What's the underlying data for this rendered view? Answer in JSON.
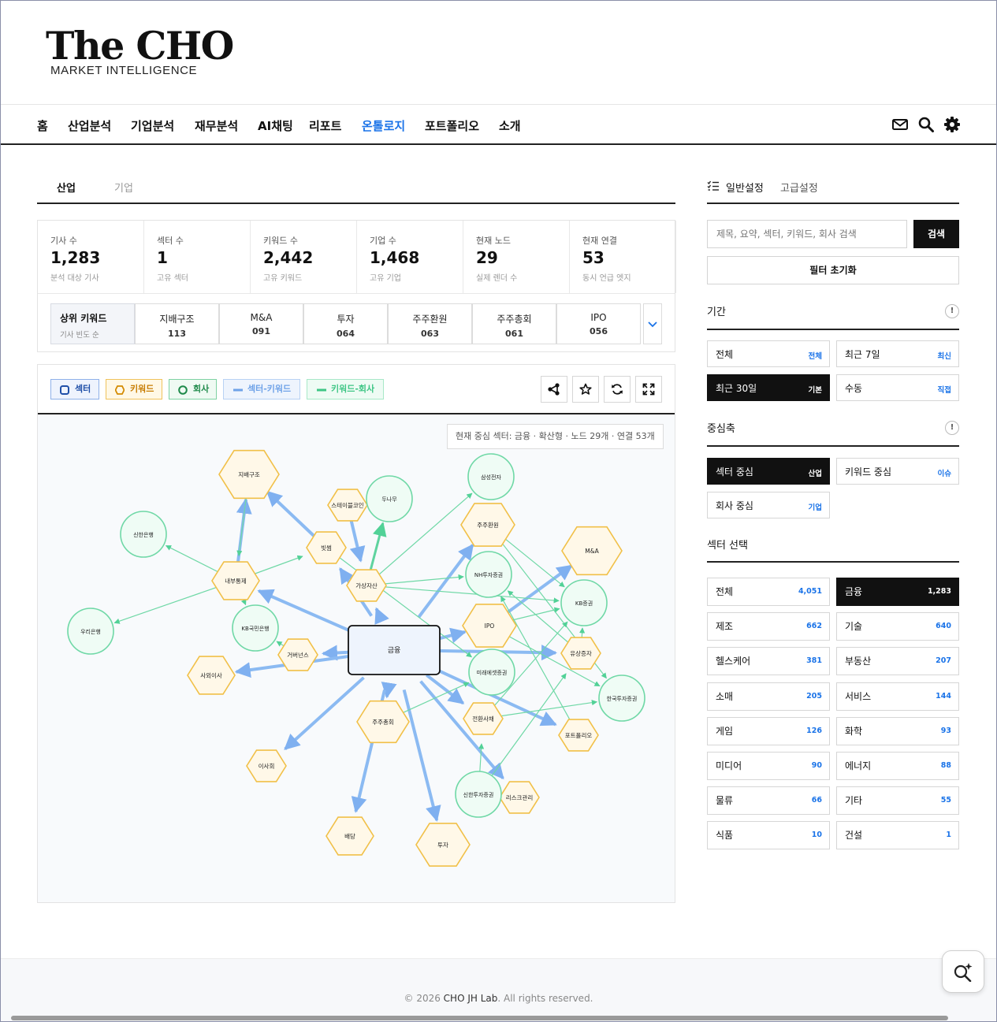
{
  "brand": {
    "title": "The CHO",
    "subtitle": "MARKET INTELLIGENCE"
  },
  "nav": {
    "items": [
      "홈",
      "산업분석",
      "기업분석",
      "재무분석",
      "AI채팅",
      "리포트",
      "온톨로지",
      "포트폴리오",
      "소개"
    ],
    "active": "온톨로지",
    "icons": [
      "mail-icon",
      "search-icon",
      "gear-icon"
    ]
  },
  "content_tabs": {
    "active": "산업",
    "inactive": "기업"
  },
  "stats": [
    {
      "label": "기사 수",
      "value": "1,283",
      "sub": "분석 대상 기사"
    },
    {
      "label": "섹터 수",
      "value": "1",
      "sub": "고유 섹터"
    },
    {
      "label": "키워드 수",
      "value": "2,442",
      "sub": "고유 키워드"
    },
    {
      "label": "기업 수",
      "value": "1,468",
      "sub": "고유 기업"
    },
    {
      "label": "현재 노드",
      "value": "29",
      "sub": "실제 렌더 수"
    },
    {
      "label": "현재 연결",
      "value": "53",
      "sub": "동시 언급 엣지"
    }
  ],
  "top_keywords": {
    "title": "상위 키워드",
    "subtitle": "기사 빈도 순",
    "items": [
      {
        "name": "지배구조",
        "count": "113"
      },
      {
        "name": "M&A",
        "count": "091"
      },
      {
        "name": "투자",
        "count": "064"
      },
      {
        "name": "주주환원",
        "count": "063"
      },
      {
        "name": "주주총회",
        "count": "061"
      },
      {
        "name": "IPO",
        "count": "056"
      }
    ]
  },
  "legend": [
    {
      "label": "섹터",
      "color": "#1f4fa8",
      "bg": "#eef3fd",
      "border": "#8fb1e9"
    },
    {
      "label": "키워드",
      "color": "#c77b00",
      "bg": "#fff8e6",
      "border": "#f0c35c"
    },
    {
      "label": "회사",
      "color": "#1e8a4a",
      "bg": "#effaf3",
      "border": "#7fd2a3"
    },
    {
      "label": "섹터-키워드",
      "color": "#6ea2e8",
      "bg": "#eef4fd",
      "border": "#b8d2f4"
    },
    {
      "label": "키워드-회사",
      "color": "#3ec685",
      "bg": "#eefbf4",
      "border": "#a8e8c8"
    }
  ],
  "graph": {
    "info": "현재 중심 섹터: 금융 · 확산형 · 노드 29개 · 연결 53개",
    "center": "금융",
    "keywords": [
      "지배구조",
      "스테이블코인",
      "빗썸",
      "가상자산",
      "내부통제",
      "거버넌스",
      "사외이사",
      "주주환원",
      "IPO",
      "M&A",
      "유상증자",
      "전환사채",
      "주주총회",
      "포트폴리오",
      "리스크관리",
      "이사회",
      "배당",
      "투자"
    ],
    "companies": [
      "삼성전자",
      "두나무",
      "신한은행",
      "우리은행",
      "KB국민은행",
      "NH투자증권",
      "KB증권",
      "미래에셋증권",
      "한국투자증권",
      "신한투자증권"
    ]
  },
  "settings": {
    "tab_active": "일반설정",
    "tab_inactive": "고급설정",
    "search_placeholder": "제목, 요약, 섹터, 키워드, 회사 검색",
    "search_button": "검색",
    "reset_button": "필터 초기화"
  },
  "period": {
    "title": "기간",
    "options": [
      {
        "label": "전체",
        "tag": "전체",
        "selected": false
      },
      {
        "label": "최근 7일",
        "tag": "최신",
        "selected": false
      },
      {
        "label": "최근 30일",
        "tag": "기본",
        "selected": true
      },
      {
        "label": "수동",
        "tag": "직접",
        "selected": false
      }
    ]
  },
  "axis": {
    "title": "중심축",
    "options": [
      {
        "label": "섹터 중심",
        "tag": "산업",
        "selected": true
      },
      {
        "label": "키워드 중심",
        "tag": "이슈",
        "selected": false
      },
      {
        "label": "회사 중심",
        "tag": "기업",
        "selected": false
      }
    ]
  },
  "sectors": {
    "title": "섹터 선택",
    "options": [
      {
        "label": "전체",
        "count": "4,051",
        "selected": false
      },
      {
        "label": "금융",
        "count": "1,283",
        "selected": true
      },
      {
        "label": "제조",
        "count": "662",
        "selected": false
      },
      {
        "label": "기술",
        "count": "640",
        "selected": false
      },
      {
        "label": "헬스케어",
        "count": "381",
        "selected": false
      },
      {
        "label": "부동산",
        "count": "207",
        "selected": false
      },
      {
        "label": "소매",
        "count": "205",
        "selected": false
      },
      {
        "label": "서비스",
        "count": "144",
        "selected": false
      },
      {
        "label": "게임",
        "count": "126",
        "selected": false
      },
      {
        "label": "화학",
        "count": "93",
        "selected": false
      },
      {
        "label": "미디어",
        "count": "90",
        "selected": false
      },
      {
        "label": "에너지",
        "count": "88",
        "selected": false
      },
      {
        "label": "물류",
        "count": "66",
        "selected": false
      },
      {
        "label": "기타",
        "count": "55",
        "selected": false
      },
      {
        "label": "식품",
        "count": "10",
        "selected": false
      },
      {
        "label": "건설",
        "count": "1",
        "selected": false
      }
    ]
  },
  "footer": {
    "prefix": "© 2026 ",
    "owner": "CHO JH Lab",
    "suffix": ". All rights reserved."
  },
  "fab": {
    "icon": "ai-search-icon"
  }
}
